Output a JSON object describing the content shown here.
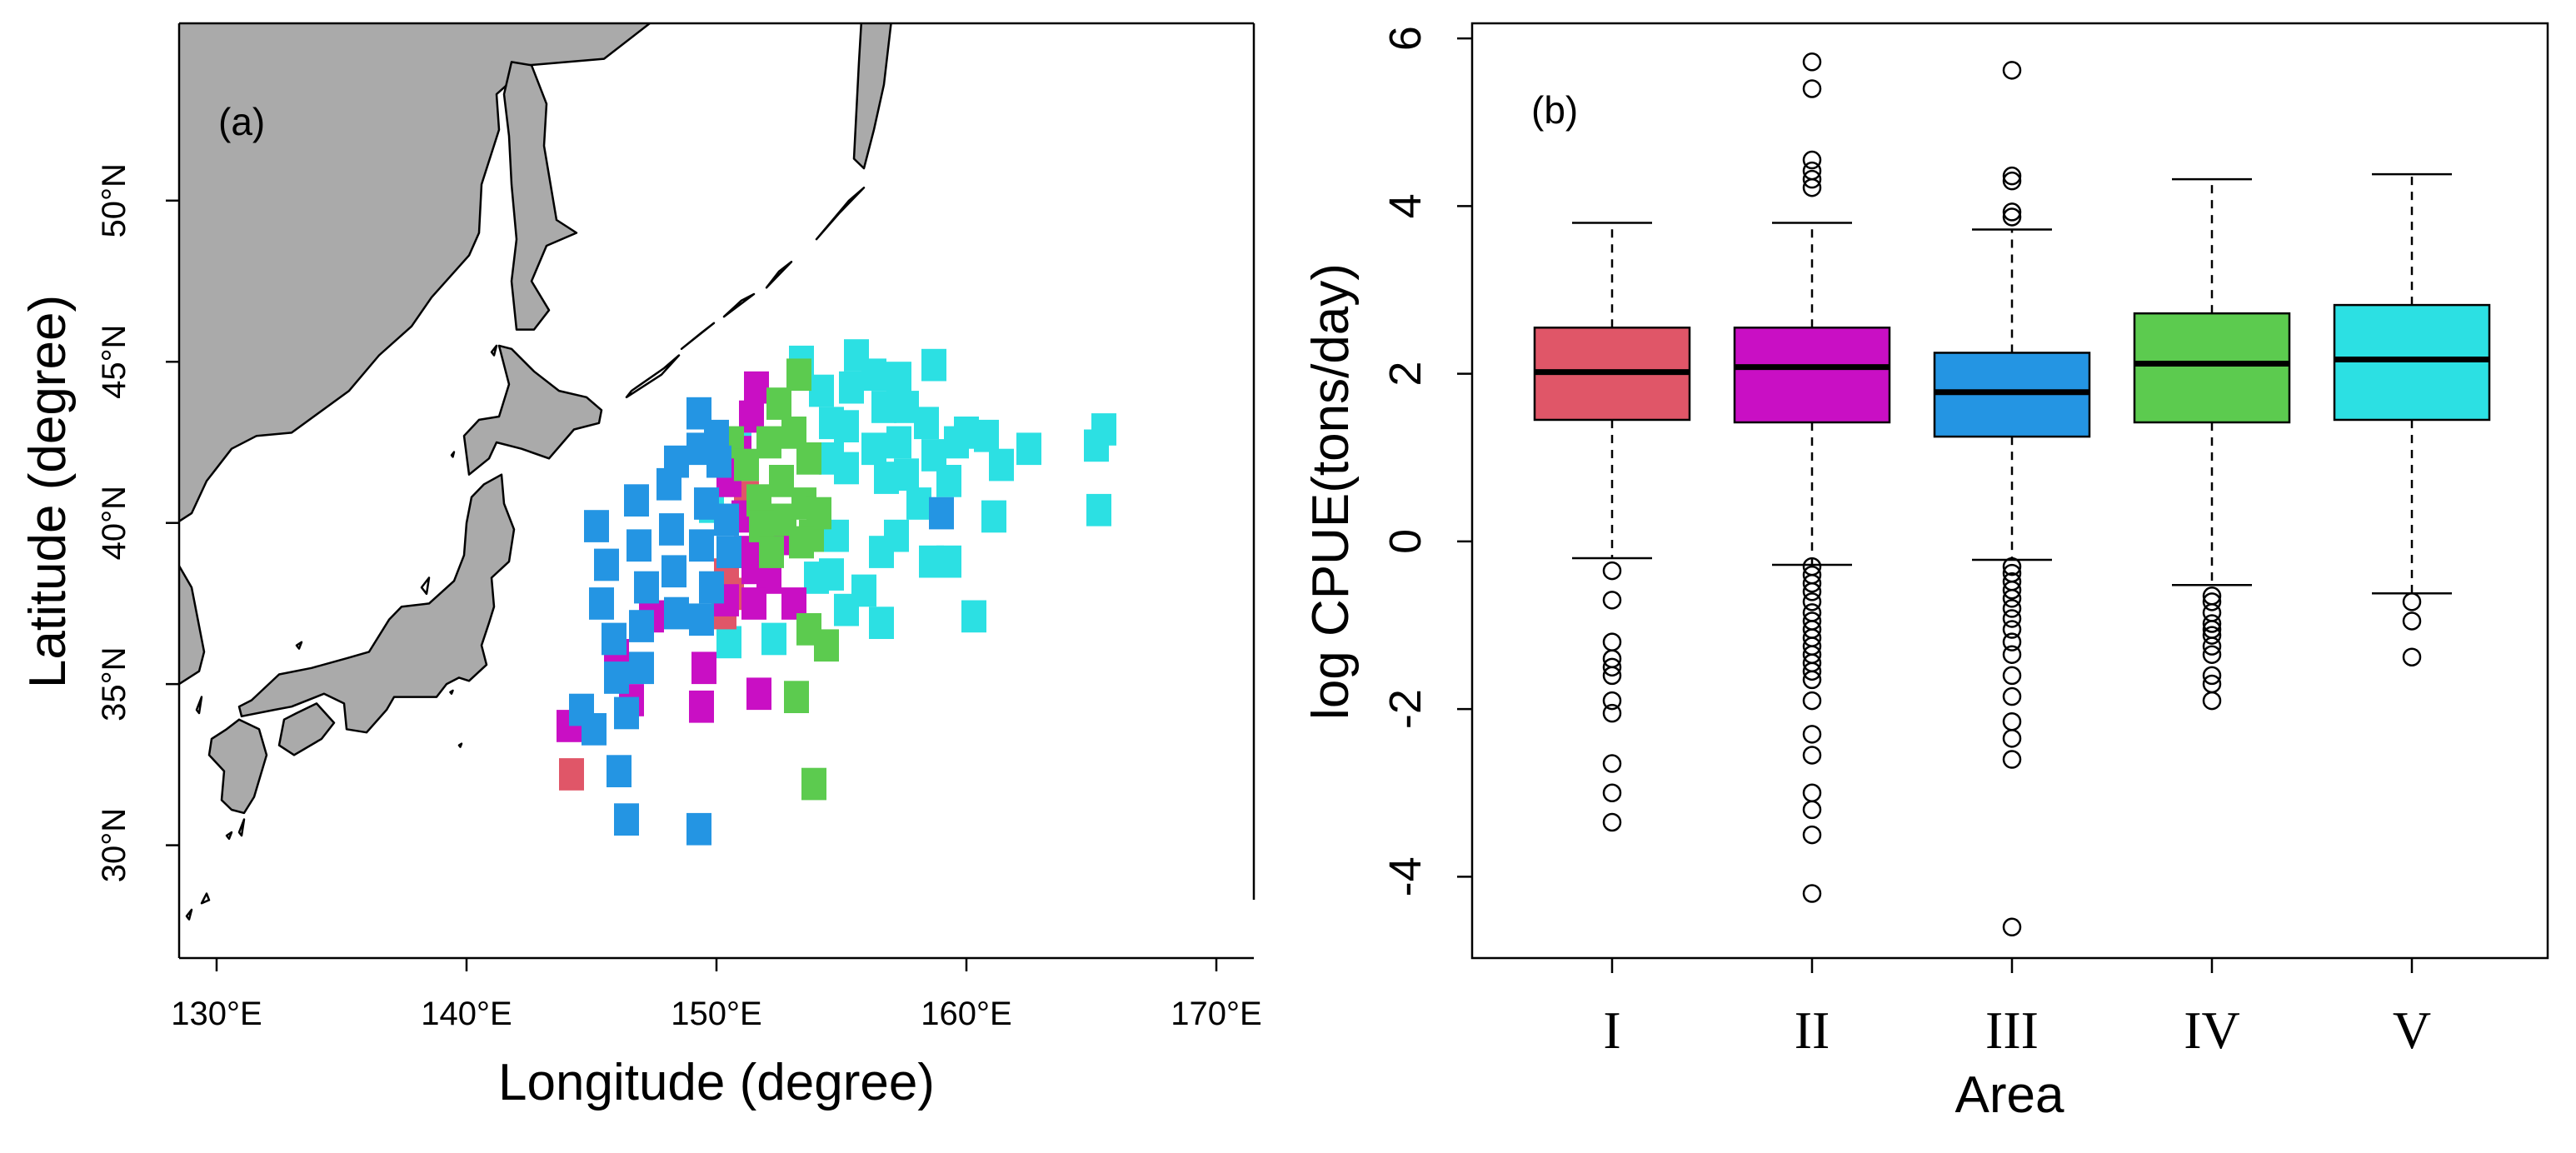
{
  "colors": {
    "I": "#E05668",
    "II": "#C90FC4",
    "III": "#2495E3",
    "IV": "#5CCB4F",
    "V": "#2CE0E3",
    "land": "#AAAAAA",
    "ink": "#000000"
  },
  "chart_data": [
    {
      "type": "scatter",
      "panel_label": "(a)",
      "title": "",
      "xlabel": "Longitude (degree)",
      "ylabel": "Latitude (degree)",
      "xlim": [
        128.5,
        171.5
      ],
      "ylim": [
        26.5,
        55.5
      ],
      "xticks": [
        130,
        140,
        150,
        160,
        170
      ],
      "xtick_labels": [
        "130°E",
        "140°E",
        "150°E",
        "160°E",
        "170°E"
      ],
      "yticks": [
        30,
        35,
        40,
        45,
        50
      ],
      "ytick_labels": [
        "30°N",
        "35°N",
        "40°N",
        "45°N",
        "50°N"
      ],
      "cell_size_deg": 1,
      "series": [
        {
          "name": "I",
          "points": [
            [
              144.2,
              32.2
            ],
            [
              150.6,
              37.8
            ],
            [
              150.3,
              37.2
            ],
            [
              151.2,
              40.8
            ],
            [
              150.4,
              38.4
            ]
          ]
        },
        {
          "name": "II",
          "points": [
            [
              150.5,
              41.3
            ],
            [
              150.9,
              42.2
            ],
            [
              151.4,
              43.3
            ],
            [
              151.6,
              44.2
            ],
            [
              151.1,
              40.2
            ],
            [
              151.2,
              39.1
            ],
            [
              150.4,
              37.6
            ],
            [
              151.5,
              38.6
            ],
            [
              152.1,
              38.3
            ],
            [
              151.5,
              37.5
            ],
            [
              153.1,
              37.5
            ],
            [
              149.5,
              35.5
            ],
            [
              149.4,
              34.3
            ],
            [
              151.7,
              34.7
            ],
            [
              147.4,
              37.1
            ],
            [
              146.0,
              35.9
            ],
            [
              144.1,
              33.7
            ],
            [
              146.6,
              34.5
            ],
            [
              152.6,
              39.5
            ]
          ]
        },
        {
          "name": "III",
          "points": [
            [
              145.2,
              39.9
            ],
            [
              145.6,
              38.7
            ],
            [
              145.4,
              37.5
            ],
            [
              145.9,
              36.4
            ],
            [
              146.0,
              35.2
            ],
            [
              146.4,
              34.1
            ],
            [
              146.8,
              40.7
            ],
            [
              146.9,
              39.3
            ],
            [
              147.2,
              38.0
            ],
            [
              147.0,
              36.8
            ],
            [
              147.0,
              35.5
            ],
            [
              148.1,
              41.2
            ],
            [
              148.2,
              39.8
            ],
            [
              148.3,
              38.5
            ],
            [
              148.4,
              37.2
            ],
            [
              149.3,
              42.3
            ],
            [
              149.6,
              40.6
            ],
            [
              149.4,
              39.3
            ],
            [
              149.8,
              38.0
            ],
            [
              149.4,
              37.0
            ],
            [
              150.1,
              41.9
            ],
            [
              150.4,
              40.1
            ],
            [
              150.5,
              39.1
            ],
            [
              149.3,
              43.4
            ],
            [
              150.0,
              42.7
            ],
            [
              148.4,
              41.9
            ],
            [
              144.6,
              34.2
            ],
            [
              145.1,
              33.6
            ],
            [
              146.1,
              32.3
            ],
            [
              146.4,
              30.8
            ],
            [
              149.3,
              30.5
            ],
            [
              159.0,
              40.3
            ]
          ]
        },
        {
          "name": "IV",
          "points": [
            [
              152.1,
              42.5
            ],
            [
              152.6,
              41.3
            ],
            [
              152.7,
              40.1
            ],
            [
              151.7,
              40.7
            ],
            [
              151.8,
              39.9
            ],
            [
              152.2,
              39.1
            ],
            [
              152.5,
              43.7
            ],
            [
              153.1,
              42.8
            ],
            [
              153.3,
              44.6
            ],
            [
              153.7,
              42.0
            ],
            [
              153.5,
              40.6
            ],
            [
              153.8,
              39.6
            ],
            [
              154.1,
              40.3
            ],
            [
              150.6,
              42.5
            ],
            [
              151.2,
              41.8
            ],
            [
              153.4,
              39.4
            ],
            [
              153.7,
              36.7
            ],
            [
              154.4,
              36.2
            ],
            [
              153.2,
              34.6
            ],
            [
              153.9,
              31.9
            ]
          ]
        },
        {
          "name": "V",
          "points": [
            [
              153.4,
              45.0
            ],
            [
              154.2,
              44.1
            ],
            [
              154.6,
              43.1
            ],
            [
              154.6,
              42.0
            ],
            [
              155.6,
              45.2
            ],
            [
              155.4,
              44.2
            ],
            [
              155.2,
              43.0
            ],
            [
              155.2,
              41.7
            ],
            [
              156.3,
              44.6
            ],
            [
              156.7,
              43.6
            ],
            [
              156.3,
              42.3
            ],
            [
              156.8,
              41.4
            ],
            [
              157.3,
              44.5
            ],
            [
              157.6,
              43.6
            ],
            [
              157.3,
              42.5
            ],
            [
              157.6,
              41.5
            ],
            [
              158.7,
              44.9
            ],
            [
              158.4,
              43.1
            ],
            [
              158.7,
              42.1
            ],
            [
              158.1,
              40.6
            ],
            [
              159.6,
              42.5
            ],
            [
              159.3,
              41.3
            ],
            [
              160.0,
              42.8
            ],
            [
              160.8,
              42.7
            ],
            [
              161.4,
              41.8
            ],
            [
              162.5,
              42.3
            ],
            [
              165.5,
              42.9
            ],
            [
              165.2,
              42.4
            ],
            [
              165.3,
              40.4
            ],
            [
              161.1,
              40.2
            ],
            [
              157.2,
              39.6
            ],
            [
              156.6,
              39.1
            ],
            [
              158.6,
              38.8
            ],
            [
              159.3,
              38.8
            ],
            [
              155.9,
              37.9
            ],
            [
              155.2,
              37.3
            ],
            [
              154.6,
              38.4
            ],
            [
              154.0,
              38.3
            ],
            [
              154.8,
              39.6
            ],
            [
              160.3,
              37.1
            ],
            [
              156.6,
              36.9
            ],
            [
              152.3,
              36.4
            ],
            [
              150.5,
              36.3
            ],
            [
              149.8,
              40.5
            ],
            [
              150.9,
              42.3
            ]
          ]
        }
      ]
    },
    {
      "type": "box",
      "panel_label": "(b)",
      "title": "",
      "xlabel": "Area",
      "ylabel": "log CPUE(tons/day)",
      "ylim": [
        -4.97,
        6.18
      ],
      "yticks": [
        -4,
        -2,
        0,
        2,
        4,
        6
      ],
      "ytick_labels": [
        "-4",
        "-2",
        "0",
        "2",
        "4",
        "6"
      ],
      "categories": [
        "I",
        "II",
        "III",
        "IV",
        "V"
      ],
      "boxes": [
        {
          "name": "I",
          "whisker_low": -0.2,
          "q1": 1.45,
          "median": 2.02,
          "q3": 2.55,
          "whisker_high": 3.8,
          "outliers": [
            -0.35,
            -0.7,
            -1.2,
            -1.4,
            -1.5,
            -1.6,
            -1.9,
            -2.05,
            -2.65,
            -3.0,
            -3.35
          ]
        },
        {
          "name": "II",
          "whisker_low": -0.28,
          "q1": 1.42,
          "median": 2.08,
          "q3": 2.55,
          "whisker_high": 3.8,
          "outliers": [
            5.72,
            5.4,
            4.55,
            4.42,
            4.32,
            4.22,
            -0.3,
            -0.4,
            -0.5,
            -0.6,
            -0.72,
            -0.85,
            -0.95,
            -1.05,
            -1.15,
            -1.25,
            -1.35,
            -1.45,
            -1.55,
            -1.65,
            -1.9,
            -2.3,
            -2.55,
            -3.0,
            -3.2,
            -3.5,
            -4.2
          ]
        },
        {
          "name": "III",
          "whisker_low": -0.22,
          "q1": 1.25,
          "median": 1.78,
          "q3": 2.25,
          "whisker_high": 3.72,
          "outliers": [
            5.62,
            4.36,
            4.3,
            3.93,
            3.87,
            -0.3,
            -0.38,
            -0.48,
            -0.58,
            -0.68,
            -0.8,
            -0.92,
            -1.05,
            -1.2,
            -1.35,
            -1.6,
            -1.85,
            -2.15,
            -2.35,
            -2.6,
            -4.6
          ]
        },
        {
          "name": "IV",
          "whisker_low": -0.52,
          "q1": 1.42,
          "median": 2.12,
          "q3": 2.72,
          "whisker_high": 4.32,
          "outliers": [
            -0.65,
            -0.72,
            -0.85,
            -0.98,
            -1.05,
            -1.12,
            -1.25,
            -1.35,
            -1.6,
            -1.7,
            -1.9
          ]
        },
        {
          "name": "V",
          "whisker_low": -0.62,
          "q1": 1.45,
          "median": 2.17,
          "q3": 2.82,
          "whisker_high": 4.38,
          "outliers": [
            -0.72,
            -0.95,
            -1.38
          ]
        }
      ]
    }
  ]
}
